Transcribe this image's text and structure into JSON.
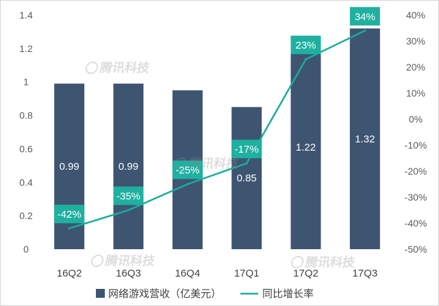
{
  "chart_data": {
    "type": "bar",
    "categories": [
      "16Q2",
      "16Q3",
      "16Q4",
      "17Q1",
      "17Q2",
      "17Q3"
    ],
    "series": [
      {
        "name": "网络游戏营收（亿美元）",
        "type": "bar",
        "axis": "left",
        "values": [
          0.99,
          0.99,
          0.95,
          0.85,
          1.22,
          1.32
        ],
        "labels": [
          "0.99",
          "0.99",
          "",
          "0.85",
          "1.22",
          "1.32"
        ],
        "color": "#3e5571"
      },
      {
        "name": "同比增长率",
        "type": "line",
        "axis": "right",
        "values": [
          -42,
          -35,
          -25,
          -17,
          23,
          34
        ],
        "labels": [
          "-42%",
          "-35%",
          "-25%",
          "-17%",
          "23%",
          "34%"
        ],
        "color": "#1bab9b"
      }
    ],
    "y_left": {
      "range": [
        0,
        1.4
      ],
      "tick_values": [
        0,
        0.2,
        0.4,
        0.6,
        0.8,
        1,
        1.2,
        1.4
      ],
      "tick_labels": [
        "0",
        "0.2",
        "0.4",
        "0.6",
        "0.8",
        "1",
        "1.2",
        "1.4"
      ]
    },
    "y_right": {
      "range": [
        -50,
        40
      ],
      "tick_values": [
        -50,
        -40,
        -30,
        -20,
        -10,
        0,
        10,
        20,
        30,
        40
      ],
      "tick_labels": [
        "-50%",
        "-40%",
        "-30%",
        "-20%",
        "-10%",
        "0%",
        "10%",
        "20%",
        "30%",
        "40%"
      ]
    },
    "grid": false,
    "legend": "bottom"
  },
  "watermark": "腾讯科技"
}
